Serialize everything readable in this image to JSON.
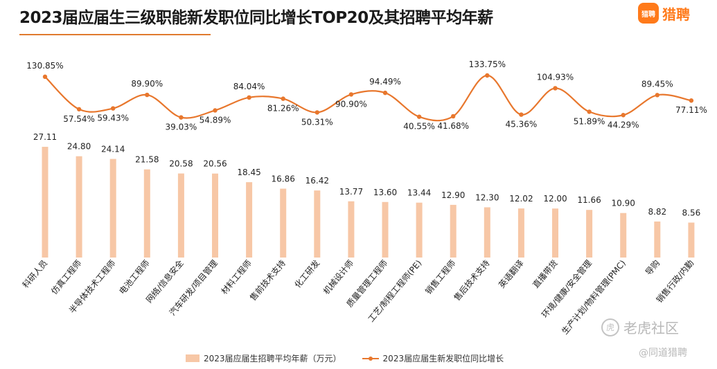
{
  "title": "2023届应届生三级职能新发职位同比增长TOP20及其招聘平均年薪",
  "brand": {
    "badge": "猎聘",
    "name": "猎聘"
  },
  "watermark": {
    "icon": "虎",
    "text": "老虎社区",
    "sub": "@同道猎聘"
  },
  "colors": {
    "bar": "#f7c7a6",
    "line": "#e8772d",
    "accent": "#e07a2e",
    "brand": "#ff7a1a"
  },
  "chart_data": {
    "type": "bar",
    "title": "2023届应届生三级职能新发职位同比增长TOP20及其招聘平均年薪",
    "categories": [
      "科研人员",
      "仿真工程师",
      "半导体技术工程师",
      "电池工程师",
      "网络/信息安全",
      "汽车研发/项目管理",
      "材料工程师",
      "售前技术支持",
      "化工研发",
      "机械设计师",
      "质量管理工程师",
      "工艺/制程工程师(PE)",
      "销售工程师",
      "售后技术支持",
      "英语翻译",
      "直播带货",
      "环境/健康/安全管理",
      "生产计划/物料管理(PMC)",
      "导购",
      "销售行政/内勤"
    ],
    "series": [
      {
        "name": "2023届应届生招聘平均年薪（万元）",
        "type": "bar",
        "values": [
          27.11,
          24.8,
          24.14,
          21.58,
          20.58,
          20.56,
          18.45,
          16.86,
          16.42,
          13.77,
          13.6,
          13.44,
          12.9,
          12.3,
          12.02,
          12.0,
          11.66,
          10.9,
          8.82,
          8.56
        ],
        "labels": [
          "27.11",
          "24.80",
          "24.14",
          "21.58",
          "20.58",
          "20.56",
          "18.45",
          "16.86",
          "16.42",
          "13.77",
          "13.60",
          "13.44",
          "12.90",
          "12.30",
          "12.02",
          "12.00",
          "11.66",
          "10.90",
          "8.82",
          "8.56"
        ]
      },
      {
        "name": "2023届应届生新发职位同比增长",
        "type": "line",
        "values": [
          130.85,
          57.54,
          59.43,
          89.9,
          39.03,
          54.89,
          84.04,
          81.26,
          50.31,
          90.9,
          94.49,
          40.55,
          41.68,
          133.75,
          45.36,
          104.93,
          51.89,
          44.29,
          89.45,
          77.11
        ],
        "labels": [
          "130.85%",
          "57.54%",
          "59.43%",
          "89.90%",
          "39.03%",
          "54.89%",
          "84.04%",
          "81.26%",
          "50.31%",
          "90.90%",
          "94.49%",
          "40.55%",
          "41.68%",
          "133.75%",
          "45.36%",
          "104.93%",
          "51.89%",
          "44.29%",
          "89.45%",
          "77.11%"
        ]
      }
    ],
    "legend": "bottom",
    "grid": false
  }
}
